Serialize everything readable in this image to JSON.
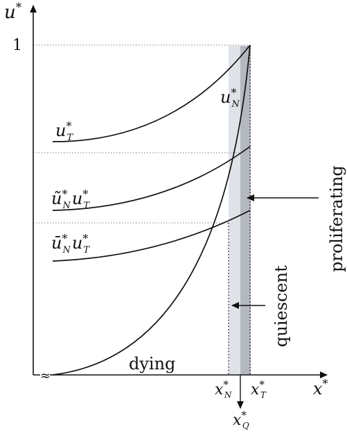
{
  "axes": {
    "y_label": "u",
    "y_label_sup": "*",
    "y_tick": "1",
    "x_label": "x",
    "x_label_sup": "*",
    "break_symbol": "≈"
  },
  "curves": {
    "uT": {
      "base": "u",
      "sub": "T",
      "sup": "*"
    },
    "uN": {
      "base": "u",
      "sub": "N",
      "sup": "*"
    },
    "tilde_product": {
      "base1": "ũ",
      "sub1": "N",
      "base2": "u",
      "sub2": "T",
      "sup": "*"
    },
    "bar_product": {
      "base1": "ū",
      "sub1": "N",
      "base2": "u",
      "sub2": "T",
      "sup": "*"
    }
  },
  "regions": {
    "dying": "dying",
    "quiescent": "quiescent",
    "proliferating": "proliferating"
  },
  "x_markers": {
    "xN": {
      "base": "x",
      "sub": "N",
      "sup": "*"
    },
    "xT": {
      "base": "x",
      "sub": "T",
      "sup": "*"
    },
    "xQ": {
      "base": "x",
      "sub": "Q",
      "sup": "*"
    }
  },
  "colors": {
    "quiescent_band": "#dfe3e8",
    "proliferating_band": "#b4b9c0",
    "stroke": "#111111"
  }
}
